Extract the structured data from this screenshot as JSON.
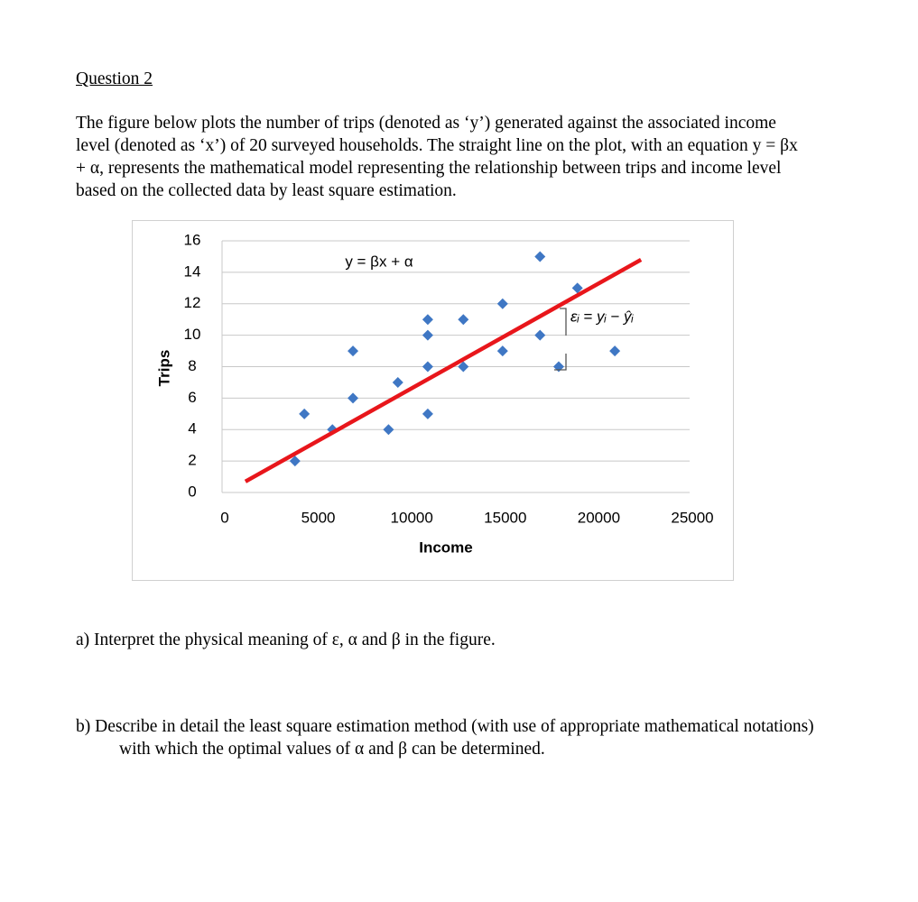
{
  "document": {
    "question_title": "Question 2",
    "intro": "The figure below plots the number of trips (denoted as ‘y’) generated against the associated income level (denoted as ‘x’) of 20 surveyed households. The straight line on the plot, with an equation y = βx + α, represents the mathematical model representing the relationship between trips and income level based on the collected data by least square estimation.",
    "question_a": "a) Interpret the physical meaning of ε, α and β in the figure.",
    "question_b": "b) Describe in detail the least square estimation method (with use of appropriate mathematical notations) with which the optimal values of α and β can be determined."
  },
  "chart_data": {
    "type": "scatter",
    "x_label": "Income",
    "y_label": "Trips",
    "x": [
      3900,
      4400,
      5900,
      7000,
      7000,
      8900,
      9400,
      11000,
      11000,
      11000,
      11000,
      12900,
      12900,
      15000,
      15000,
      17000,
      17000,
      18000,
      19000,
      21000
    ],
    "values": [
      2,
      5,
      4,
      6,
      9,
      4,
      7,
      5,
      8,
      10,
      11,
      8,
      11,
      9,
      12,
      15,
      10,
      8,
      13,
      9
    ],
    "color": "#3f77c4",
    "fit_line": {
      "x": [
        1250,
        22400
      ],
      "values": [
        0.7,
        14.8
      ],
      "color": "#e8161b"
    },
    "annotations": [
      "y = βx + α",
      "εᵢ = yᵢ − ŷᵢ"
    ],
    "xlim": [
      0,
      25000
    ],
    "ylim": [
      0,
      16
    ],
    "xticks": [
      0,
      5000,
      10000,
      15000,
      20000,
      25000
    ],
    "yticks": [
      0,
      2,
      4,
      6,
      8,
      10,
      12,
      14,
      16
    ],
    "grid": true
  }
}
